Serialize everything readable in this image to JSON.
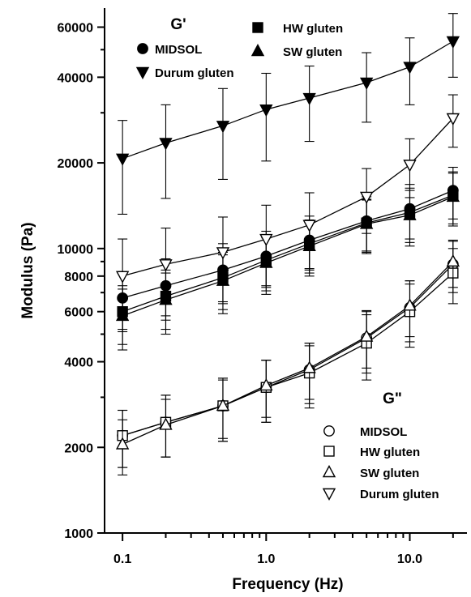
{
  "chart_data": {
    "type": "line",
    "xlabel": "Frequency (Hz)",
    "ylabel": "Modulus (Pa)",
    "x_scale": "log",
    "y_scale": "log",
    "xlim": [
      0.075,
      25
    ],
    "ylim": [
      1000,
      70000
    ],
    "x_ticks": [
      0.1,
      1.0,
      10.0
    ],
    "x_tick_labels": [
      "0.1",
      "1.0",
      "10.0"
    ],
    "y_ticks": [
      1000,
      2000,
      4000,
      6000,
      8000,
      10000,
      20000,
      40000,
      60000
    ],
    "y_tick_labels": [
      "1000",
      "2000",
      "4000",
      "6000",
      "8000",
      "10000",
      "20000",
      "40000",
      "60000"
    ],
    "x": [
      0.1,
      0.2,
      0.5,
      1.0,
      2.0,
      5.0,
      10.0,
      20.0
    ],
    "legend_groups": [
      {
        "title": "G'",
        "entries": [
          "MIDSOL",
          "HW gluten",
          "SW gluten",
          "Durum gluten"
        ]
      },
      {
        "title": "G\"",
        "entries": [
          "MIDSOL",
          "HW gluten",
          "SW gluten",
          "Durum gluten"
        ]
      }
    ],
    "series": [
      {
        "group": "G'",
        "name": "MIDSOL",
        "marker": "circle",
        "filled": true,
        "values": [
          6700,
          7400,
          8400,
          9400,
          10700,
          12500,
          13800,
          16000
        ],
        "errors": [
          1600,
          1800,
          2000,
          2100,
          2300,
          2700,
          3000,
          3300
        ]
      },
      {
        "group": "G'",
        "name": "HW gluten",
        "marker": "square",
        "filled": true,
        "values": [
          6000,
          6800,
          7900,
          9100,
          10400,
          12300,
          13400,
          15400
        ],
        "errors": [
          1400,
          1600,
          1800,
          2000,
          2200,
          2600,
          2900,
          3200
        ]
      },
      {
        "group": "G'",
        "name": "SW gluten",
        "marker": "triangle-up",
        "filled": true,
        "values": [
          5800,
          6600,
          7700,
          8900,
          10200,
          12200,
          13100,
          15200
        ],
        "errors": [
          1400,
          1600,
          1800,
          2000,
          2200,
          2600,
          2900,
          3200
        ]
      },
      {
        "group": "G'",
        "name": "Durum gluten",
        "marker": "triangle-down",
        "filled": true,
        "values": [
          20700,
          23500,
          27000,
          30800,
          33800,
          38300,
          43500,
          53500
        ],
        "errors": [
          7500,
          8500,
          9500,
          10500,
          10000,
          10500,
          11500,
          13500
        ]
      },
      {
        "group": "G\"",
        "name": "MIDSOL",
        "marker": "circle",
        "filled": false,
        "values": [
          2200,
          2450,
          2800,
          3250,
          3750,
          4850,
          6200,
          8800
        ],
        "errors": [
          500,
          600,
          700,
          800,
          900,
          1200,
          1500,
          1800
        ]
      },
      {
        "group": "G\"",
        "name": "HW gluten",
        "marker": "square",
        "filled": false,
        "values": [
          2200,
          2450,
          2800,
          3250,
          3650,
          4650,
          6000,
          8200
        ],
        "errors": [
          500,
          600,
          700,
          800,
          900,
          1200,
          1500,
          1800
        ]
      },
      {
        "group": "G\"",
        "name": "SW gluten",
        "marker": "triangle-up",
        "filled": false,
        "values": [
          2050,
          2400,
          2800,
          3300,
          3800,
          4900,
          6300,
          9000
        ],
        "errors": [
          450,
          550,
          650,
          750,
          850,
          1100,
          1400,
          1700
        ]
      },
      {
        "group": "G\"",
        "name": "Durum gluten",
        "marker": "triangle-down",
        "filled": false,
        "values": [
          8000,
          8800,
          9700,
          10800,
          12100,
          15200,
          19700,
          28700
        ],
        "errors": [
          2800,
          3000,
          3200,
          3400,
          3600,
          3900,
          4600,
          6000
        ]
      }
    ]
  }
}
